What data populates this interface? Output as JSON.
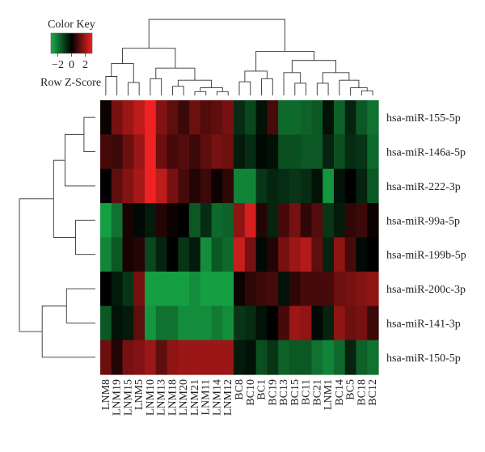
{
  "chart_data": {
    "type": "heatmap",
    "color_key": {
      "title": "Color Key",
      "scale_label": "Row Z-Score",
      "ticks": [
        "−2",
        "0",
        "2"
      ],
      "tick_values": [
        -2,
        0,
        2
      ],
      "low_color": "#18b04a",
      "mid_color": "#000000",
      "high_color": "#ee2222"
    },
    "columns": [
      "LNM8",
      "LNM19",
      "LNM15",
      "LNM5",
      "LNM10",
      "LNM13",
      "LNM18",
      "LNM20",
      "LNM21",
      "LNM11",
      "LNM14",
      "LNM12",
      "BC8",
      "BC10",
      "BC1",
      "BC19",
      "BC13",
      "BC15",
      "BC11",
      "BC21",
      "LNM1",
      "BC14",
      "BC5",
      "BC18",
      "BC12"
    ],
    "rows": [
      "hsa-miR-155-5p",
      "hsa-miR-146a-5p",
      "hsa-miR-222-3p",
      "hsa-miR-99a-5p",
      "hsa-miR-199b-5p",
      "hsa-miR-200c-3p",
      "hsa-miR-141-3p",
      "hsa-miR-150-5p"
    ],
    "values": [
      [
        0.1,
        1.0,
        1.3,
        1.6,
        2.0,
        1.1,
        0.8,
        0.5,
        0.9,
        0.7,
        0.8,
        1.0,
        -0.5,
        -0.8,
        -0.2,
        0.6,
        -1.2,
        -1.2,
        -1.1,
        -1.0,
        -0.2,
        -1.1,
        -0.4,
        -1.0,
        -1.3
      ],
      [
        0.6,
        0.5,
        0.9,
        1.3,
        2.1,
        0.9,
        0.6,
        0.7,
        0.5,
        0.8,
        1.0,
        0.9,
        -0.3,
        -0.5,
        -0.1,
        -0.2,
        -0.9,
        -0.9,
        -1.0,
        -1.0,
        -0.4,
        -0.9,
        -0.5,
        -0.6,
        -1.2
      ],
      [
        0.0,
        0.8,
        1.1,
        1.4,
        2.1,
        1.6,
        1.0,
        0.6,
        0.3,
        0.5,
        0.1,
        0.4,
        -1.5,
        -1.5,
        -0.6,
        -0.4,
        -0.5,
        -0.6,
        -0.5,
        -0.2,
        -1.7,
        -0.2,
        0.0,
        -0.4,
        -1.0
      ],
      [
        -1.8,
        -1.3,
        0.2,
        -0.1,
        -0.3,
        0.3,
        0.1,
        0.0,
        -1.0,
        -0.5,
        -1.2,
        -1.1,
        1.2,
        1.8,
        0.3,
        -0.4,
        0.6,
        1.0,
        0.4,
        0.7,
        -0.6,
        -0.3,
        0.4,
        0.5,
        0.1
      ],
      [
        -1.5,
        -1.0,
        0.2,
        0.3,
        -0.8,
        -0.4,
        0.0,
        -0.6,
        -0.3,
        -1.6,
        -1.0,
        -1.2,
        1.7,
        1.0,
        -0.1,
        0.3,
        1.0,
        1.3,
        1.5,
        0.8,
        -0.4,
        1.2,
        0.6,
        -0.1,
        0.0
      ],
      [
        0.0,
        -0.3,
        -0.6,
        1.0,
        -1.8,
        -1.8,
        -1.8,
        -1.8,
        -1.6,
        -1.8,
        -1.8,
        -1.8,
        0.1,
        0.4,
        0.5,
        0.6,
        -0.2,
        0.4,
        0.6,
        0.6,
        0.6,
        0.9,
        1.0,
        1.1,
        1.2
      ],
      [
        -1.0,
        -0.2,
        -0.3,
        0.8,
        -1.7,
        -1.3,
        -1.3,
        -1.6,
        -1.6,
        -1.6,
        -1.4,
        -1.6,
        -0.6,
        -0.5,
        -0.2,
        0.0,
        0.6,
        1.3,
        1.2,
        -0.1,
        -0.4,
        1.2,
        0.9,
        1.0,
        0.5
      ],
      [
        0.9,
        0.3,
        1.0,
        1.1,
        1.3,
        0.8,
        1.2,
        1.3,
        1.3,
        1.3,
        1.3,
        1.3,
        -0.3,
        -0.2,
        -0.9,
        -0.6,
        -1.1,
        -1.0,
        -1.0,
        -1.3,
        -1.5,
        -1.2,
        -0.4,
        -1.1,
        -1.3
      ]
    ],
    "grid": false,
    "legend_position": "top-left"
  }
}
